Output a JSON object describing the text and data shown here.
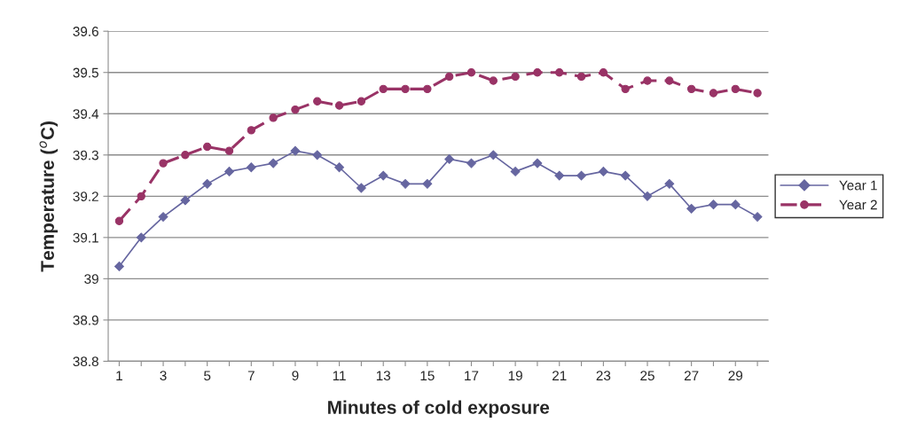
{
  "chart_data": {
    "type": "line",
    "xlabel": "Minutes of cold exposure",
    "ylabel": "Temperature ($^{o}$C)",
    "categories": [
      "1",
      null,
      "3",
      null,
      "5",
      null,
      "7",
      null,
      "9",
      null,
      "11",
      null,
      "13",
      null,
      "15",
      null,
      "17",
      null,
      "19",
      null,
      "21",
      null,
      "23",
      null,
      "25",
      null,
      "27",
      null,
      "29",
      null
    ],
    "series": [
      {
        "name": "Year 1",
        "color": "#6666a0",
        "marker": "diamond",
        "line_style": "solid",
        "values": [
          39.03,
          39.1,
          39.15,
          39.19,
          39.23,
          39.26,
          39.27,
          39.28,
          39.31,
          39.3,
          39.27,
          39.22,
          39.25,
          39.23,
          39.23,
          39.29,
          39.28,
          39.3,
          39.26,
          39.28,
          39.25,
          39.25,
          39.26,
          39.25,
          39.2,
          39.23,
          39.17,
          39.18,
          39.18,
          39.15
        ]
      },
      {
        "name": "Year 2",
        "color": "#993366",
        "marker": "circle",
        "line_style": "dashed",
        "values": [
          39.14,
          39.2,
          39.28,
          39.3,
          39.32,
          39.31,
          39.36,
          39.39,
          39.41,
          39.43,
          39.42,
          39.43,
          39.46,
          39.46,
          39.46,
          39.49,
          39.5,
          39.48,
          39.49,
          39.5,
          39.5,
          39.49,
          39.5,
          39.46,
          39.48,
          39.48,
          39.46,
          39.45,
          39.46,
          39.45
        ]
      }
    ],
    "ylim": [
      38.8,
      39.6
    ],
    "yticks": [
      {
        "value": 38.8,
        "label": "38.8"
      },
      {
        "value": 38.9,
        "label": "38.9"
      },
      {
        "value": 39,
        "label": "39"
      },
      {
        "value": 39.1,
        "label": "39.1"
      },
      {
        "value": 39.2,
        "label": "39.2"
      },
      {
        "value": 39.3,
        "label": "39.3"
      },
      {
        "value": 39.4,
        "label": "39.4"
      },
      {
        "value": 39.5,
        "label": "39.5"
      },
      {
        "value": 39.6,
        "label": "39.6"
      }
    ],
    "grid": "y",
    "legend": "right"
  }
}
